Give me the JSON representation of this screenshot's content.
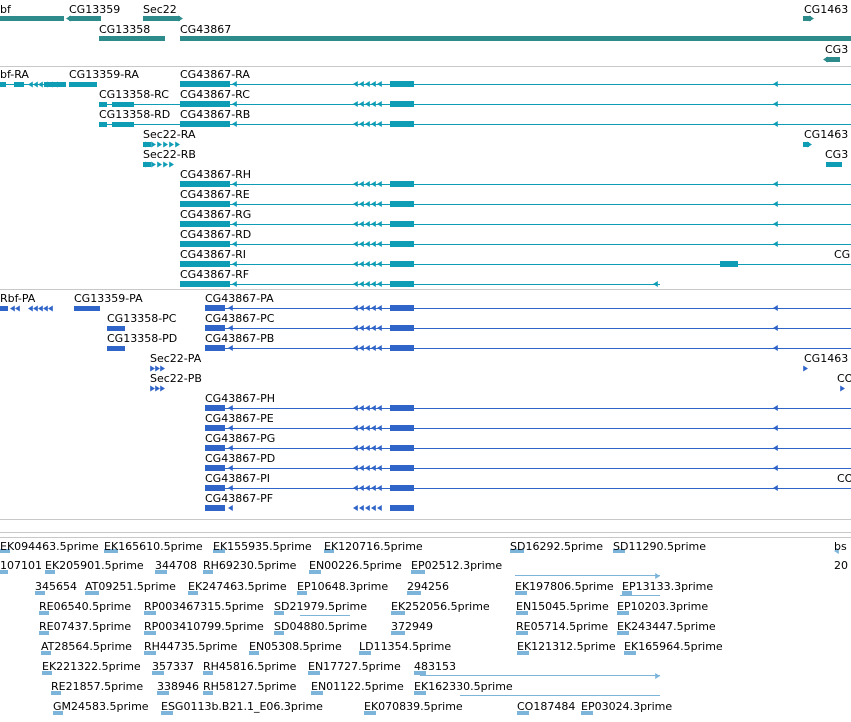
{
  "colors": {
    "gene": "#2e8b8b",
    "transcript": "#0f9db5",
    "protein": "#2f64c8",
    "est": "#7cb4da",
    "divider": "#c8c8c8",
    "text": "#000000"
  },
  "gene_track": {
    "labels": [
      "bf",
      "CG13359",
      "Sec22",
      "CG1463",
      "CG13358",
      "CG43867",
      "CG3"
    ]
  },
  "transcript_track": {
    "labels": [
      "bf-RA",
      "CG13359-RA",
      "CG43867-RA",
      "CG13358-RC",
      "CG43867-RC",
      "CG13358-RD",
      "CG43867-RB",
      "Sec22-RA",
      "CG1463",
      "Sec22-RB",
      "CG3",
      "CG43867-RH",
      "CG43867-RE",
      "CG43867-RG",
      "CG43867-RD",
      "CG43867-RI",
      "CG",
      "CG43867-RF"
    ]
  },
  "protein_track": {
    "labels": [
      "Rbf-PA",
      "CG13359-PA",
      "CG43867-PA",
      "CG13358-PC",
      "CG43867-PC",
      "CG13358-PD",
      "CG43867-PB",
      "Sec22-PA",
      "CG1463",
      "Sec22-PB",
      "CO",
      "CG43867-PH",
      "CG43867-PE",
      "CG43867-PG",
      "CG43867-PD",
      "CG43867-PI",
      "CO",
      "CG43867-PF"
    ]
  },
  "est_track": {
    "labels": [
      "EK094463.5prime",
      "EK165610.5prime",
      "EK155935.5prime",
      "EK120716.5prime",
      "SD16292.5prime",
      "SD11290.5prime",
      "bs",
      "107101",
      "EK205901.5prime",
      "344708",
      "RH69230.5prime",
      "EN00226.5prime",
      "EP02512.3prime",
      "20",
      "345654",
      "AT09251.5prime",
      "EK247463.5prime",
      "EP10648.3prime",
      "294256",
      "EK197806.5prime",
      "EP13133.3prime",
      "RE06540.5prime",
      "RP003467315.5prime",
      "SD21979.5prime",
      "EK252056.5prime",
      "EN15045.5prime",
      "EP10203.3prime",
      "RE07437.5prime",
      "RP003410799.5prime",
      "SD04880.5prime",
      "372949",
      "RE05714.5prime",
      "EK243447.5prime",
      "AT28564.5prime",
      "RH44735.5prime",
      "EN05308.5prime",
      "LD11354.5prime",
      "EK221322.5prime",
      "357337",
      "RH45816.5prime",
      "EN17727.5prime",
      "483153",
      "EK121312.5prime",
      "EK165964.5prime",
      "RE21857.5prime",
      "338946",
      "RH58127.5prime",
      "EN01122.5prime",
      "EK162330.5prime",
      "GM24583.5prime",
      "ESG0113b.B21.1_E06.3prime",
      "EK070839.5prime",
      "CO187484",
      "EP03024.3prime"
    ]
  }
}
